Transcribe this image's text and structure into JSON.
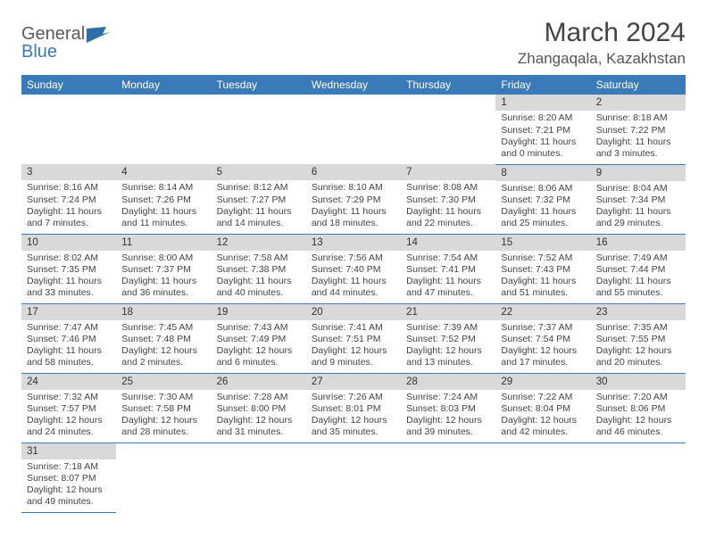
{
  "brand": {
    "part1": "General",
    "part2": "Blue"
  },
  "title": "March 2024",
  "location": "Zhangaqala, Kazakhstan",
  "colors": {
    "header_bg": "#3a7ab8",
    "header_text": "#ffffff",
    "dayhead_bg": "#d9d9d9",
    "row_border": "#3a7ab8",
    "body_text": "#444444"
  },
  "day_names": [
    "Sunday",
    "Monday",
    "Tuesday",
    "Wednesday",
    "Thursday",
    "Friday",
    "Saturday"
  ],
  "weeks": [
    [
      null,
      null,
      null,
      null,
      null,
      {
        "n": "1",
        "sunrise": "Sunrise: 8:20 AM",
        "sunset": "Sunset: 7:21 PM",
        "daylight": "Daylight: 11 hours and 0 minutes."
      },
      {
        "n": "2",
        "sunrise": "Sunrise: 8:18 AM",
        "sunset": "Sunset: 7:22 PM",
        "daylight": "Daylight: 11 hours and 3 minutes."
      }
    ],
    [
      {
        "n": "3",
        "sunrise": "Sunrise: 8:16 AM",
        "sunset": "Sunset: 7:24 PM",
        "daylight": "Daylight: 11 hours and 7 minutes."
      },
      {
        "n": "4",
        "sunrise": "Sunrise: 8:14 AM",
        "sunset": "Sunset: 7:26 PM",
        "daylight": "Daylight: 11 hours and 11 minutes."
      },
      {
        "n": "5",
        "sunrise": "Sunrise: 8:12 AM",
        "sunset": "Sunset: 7:27 PM",
        "daylight": "Daylight: 11 hours and 14 minutes."
      },
      {
        "n": "6",
        "sunrise": "Sunrise: 8:10 AM",
        "sunset": "Sunset: 7:29 PM",
        "daylight": "Daylight: 11 hours and 18 minutes."
      },
      {
        "n": "7",
        "sunrise": "Sunrise: 8:08 AM",
        "sunset": "Sunset: 7:30 PM",
        "daylight": "Daylight: 11 hours and 22 minutes."
      },
      {
        "n": "8",
        "sunrise": "Sunrise: 8:06 AM",
        "sunset": "Sunset: 7:32 PM",
        "daylight": "Daylight: 11 hours and 25 minutes."
      },
      {
        "n": "9",
        "sunrise": "Sunrise: 8:04 AM",
        "sunset": "Sunset: 7:34 PM",
        "daylight": "Daylight: 11 hours and 29 minutes."
      }
    ],
    [
      {
        "n": "10",
        "sunrise": "Sunrise: 8:02 AM",
        "sunset": "Sunset: 7:35 PM",
        "daylight": "Daylight: 11 hours and 33 minutes."
      },
      {
        "n": "11",
        "sunrise": "Sunrise: 8:00 AM",
        "sunset": "Sunset: 7:37 PM",
        "daylight": "Daylight: 11 hours and 36 minutes."
      },
      {
        "n": "12",
        "sunrise": "Sunrise: 7:58 AM",
        "sunset": "Sunset: 7:38 PM",
        "daylight": "Daylight: 11 hours and 40 minutes."
      },
      {
        "n": "13",
        "sunrise": "Sunrise: 7:56 AM",
        "sunset": "Sunset: 7:40 PM",
        "daylight": "Daylight: 11 hours and 44 minutes."
      },
      {
        "n": "14",
        "sunrise": "Sunrise: 7:54 AM",
        "sunset": "Sunset: 7:41 PM",
        "daylight": "Daylight: 11 hours and 47 minutes."
      },
      {
        "n": "15",
        "sunrise": "Sunrise: 7:52 AM",
        "sunset": "Sunset: 7:43 PM",
        "daylight": "Daylight: 11 hours and 51 minutes."
      },
      {
        "n": "16",
        "sunrise": "Sunrise: 7:49 AM",
        "sunset": "Sunset: 7:44 PM",
        "daylight": "Daylight: 11 hours and 55 minutes."
      }
    ],
    [
      {
        "n": "17",
        "sunrise": "Sunrise: 7:47 AM",
        "sunset": "Sunset: 7:46 PM",
        "daylight": "Daylight: 11 hours and 58 minutes."
      },
      {
        "n": "18",
        "sunrise": "Sunrise: 7:45 AM",
        "sunset": "Sunset: 7:48 PM",
        "daylight": "Daylight: 12 hours and 2 minutes."
      },
      {
        "n": "19",
        "sunrise": "Sunrise: 7:43 AM",
        "sunset": "Sunset: 7:49 PM",
        "daylight": "Daylight: 12 hours and 6 minutes."
      },
      {
        "n": "20",
        "sunrise": "Sunrise: 7:41 AM",
        "sunset": "Sunset: 7:51 PM",
        "daylight": "Daylight: 12 hours and 9 minutes."
      },
      {
        "n": "21",
        "sunrise": "Sunrise: 7:39 AM",
        "sunset": "Sunset: 7:52 PM",
        "daylight": "Daylight: 12 hours and 13 minutes."
      },
      {
        "n": "22",
        "sunrise": "Sunrise: 7:37 AM",
        "sunset": "Sunset: 7:54 PM",
        "daylight": "Daylight: 12 hours and 17 minutes."
      },
      {
        "n": "23",
        "sunrise": "Sunrise: 7:35 AM",
        "sunset": "Sunset: 7:55 PM",
        "daylight": "Daylight: 12 hours and 20 minutes."
      }
    ],
    [
      {
        "n": "24",
        "sunrise": "Sunrise: 7:32 AM",
        "sunset": "Sunset: 7:57 PM",
        "daylight": "Daylight: 12 hours and 24 minutes."
      },
      {
        "n": "25",
        "sunrise": "Sunrise: 7:30 AM",
        "sunset": "Sunset: 7:58 PM",
        "daylight": "Daylight: 12 hours and 28 minutes."
      },
      {
        "n": "26",
        "sunrise": "Sunrise: 7:28 AM",
        "sunset": "Sunset: 8:00 PM",
        "daylight": "Daylight: 12 hours and 31 minutes."
      },
      {
        "n": "27",
        "sunrise": "Sunrise: 7:26 AM",
        "sunset": "Sunset: 8:01 PM",
        "daylight": "Daylight: 12 hours and 35 minutes."
      },
      {
        "n": "28",
        "sunrise": "Sunrise: 7:24 AM",
        "sunset": "Sunset: 8:03 PM",
        "daylight": "Daylight: 12 hours and 39 minutes."
      },
      {
        "n": "29",
        "sunrise": "Sunrise: 7:22 AM",
        "sunset": "Sunset: 8:04 PM",
        "daylight": "Daylight: 12 hours and 42 minutes."
      },
      {
        "n": "30",
        "sunrise": "Sunrise: 7:20 AM",
        "sunset": "Sunset: 8:06 PM",
        "daylight": "Daylight: 12 hours and 46 minutes."
      }
    ],
    [
      {
        "n": "31",
        "sunrise": "Sunrise: 7:18 AM",
        "sunset": "Sunset: 8:07 PM",
        "daylight": "Daylight: 12 hours and 49 minutes."
      },
      null,
      null,
      null,
      null,
      null,
      null
    ]
  ]
}
